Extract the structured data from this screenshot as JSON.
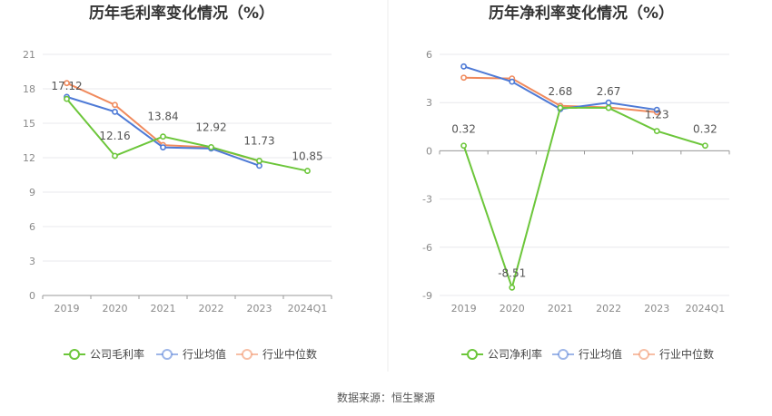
{
  "source_text": "数据来源：恒生聚源",
  "colors": {
    "company": "#6cc63a",
    "avg": "#4e7ad6",
    "median": "#f08a5d",
    "grid": "#e8e8ec",
    "axis": "#999999"
  },
  "chart_data": [
    {
      "type": "line",
      "title": "历年毛利率变化情况（%）",
      "categories": [
        "2019",
        "2020",
        "2021",
        "2022",
        "2023",
        "2024Q1"
      ],
      "ylim": [
        0,
        21
      ],
      "yticks": [
        0,
        3,
        6,
        9,
        12,
        15,
        18,
        21
      ],
      "grid": true,
      "legend_position": "bottom",
      "series": [
        {
          "name": "公司毛利率",
          "key": "company",
          "values": [
            17.12,
            12.16,
            13.84,
            12.92,
            11.73,
            10.85
          ],
          "labels": [
            "17.12",
            "12.16",
            "13.84",
            "12.92",
            "11.73",
            "10.85"
          ]
        },
        {
          "name": "行业均值",
          "key": "avg",
          "values": [
            17.3,
            16.0,
            12.9,
            12.8,
            11.3,
            null
          ]
        },
        {
          "name": "行业中位数",
          "key": "median",
          "values": [
            18.5,
            16.6,
            13.1,
            12.9,
            11.7,
            null
          ]
        }
      ]
    },
    {
      "type": "line",
      "title": "历年净利率变化情况（%）",
      "categories": [
        "2019",
        "2020",
        "2021",
        "2022",
        "2023",
        "2024Q1"
      ],
      "ylim": [
        -9,
        6
      ],
      "yticks": [
        -9,
        -6,
        -3,
        0,
        3,
        6
      ],
      "grid": true,
      "legend_position": "bottom",
      "series": [
        {
          "name": "公司净利率",
          "key": "company",
          "values": [
            0.32,
            -8.51,
            2.68,
            2.67,
            1.23,
            0.32
          ],
          "labels": [
            "0.32",
            "-8.51",
            "2.68",
            "2.67",
            "1.23",
            "0.32"
          ]
        },
        {
          "name": "行业均值",
          "key": "avg",
          "values": [
            5.25,
            4.3,
            2.6,
            3.0,
            2.55,
            null
          ]
        },
        {
          "name": "行业中位数",
          "key": "median",
          "values": [
            4.55,
            4.5,
            2.8,
            2.7,
            2.4,
            null
          ]
        }
      ]
    }
  ]
}
